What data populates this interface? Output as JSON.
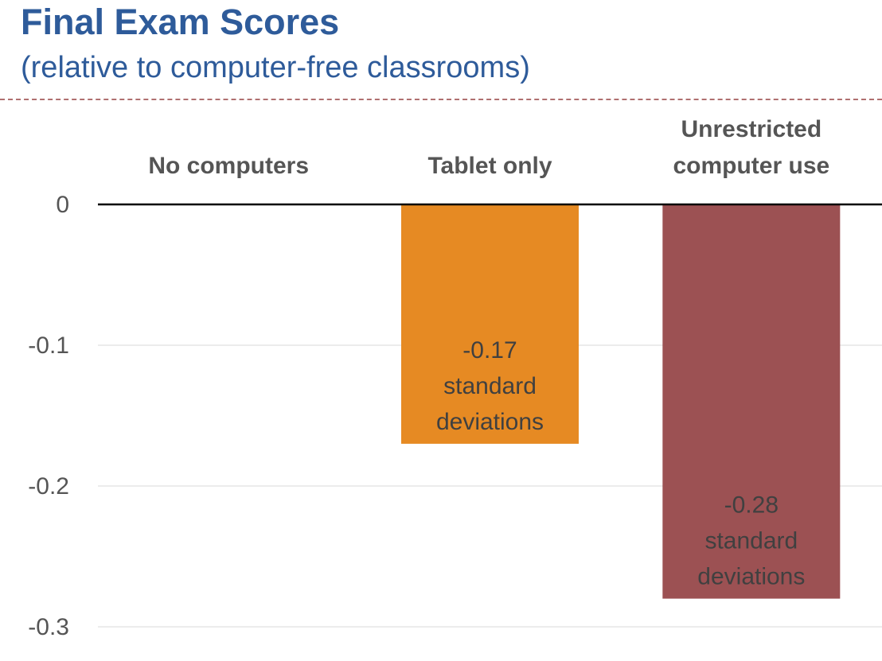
{
  "header": {
    "title": "Final Exam Scores",
    "subtitle": "(relative to computer-free classrooms)"
  },
  "chart_data": {
    "type": "bar",
    "title": "Final Exam Scores",
    "subtitle": "(relative to computer-free classrooms)",
    "categories": [
      [
        "No computers"
      ],
      [
        "Tablet only"
      ],
      [
        "Unrestricted",
        "computer use"
      ]
    ],
    "values": [
      0,
      -0.17,
      -0.28
    ],
    "data_labels": [
      null,
      [
        "-0.17",
        "standard",
        "deviations"
      ],
      [
        "-0.28",
        "standard",
        "deviations"
      ]
    ],
    "colors": [
      null,
      "#e68a23",
      "#9c5153"
    ],
    "yticks": [
      "0",
      "-0.1",
      "-0.2",
      "-0.3"
    ],
    "ytick_values": [
      0,
      -0.1,
      -0.2,
      -0.3
    ],
    "ylim": [
      -0.3,
      0
    ],
    "grid": true,
    "legend": "none",
    "xaxis_position": "top"
  }
}
